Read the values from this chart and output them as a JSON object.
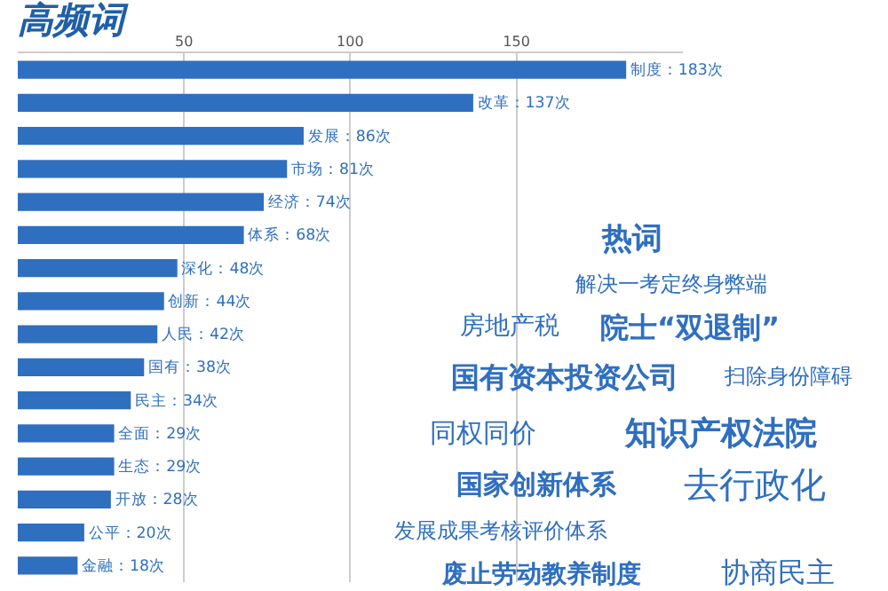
{
  "chart_data": {
    "type": "bar",
    "orientation": "horizontal",
    "title": "高频词",
    "categories": [
      null,
      null,
      null,
      null,
      null,
      null,
      null,
      null,
      null,
      null,
      null,
      null,
      null,
      null,
      null,
      null
    ],
    "values": [
      183,
      137,
      86,
      81,
      74,
      68,
      48,
      44,
      42,
      38,
      34,
      29,
      29,
      28,
      20,
      18
    ],
    "value_labels": [
      "制度：183次",
      "改革：137次",
      "发展：86次",
      "市场：81次",
      "经济：74次",
      "体系：68次",
      "深化：48次",
      "创新：44次",
      "人民：42次",
      "国有：38次",
      "民主：34次",
      "全面：29次",
      "生态：29次",
      "开放：28次",
      "公平：20次",
      "金融：18次"
    ],
    "color": "#2f6fc0",
    "xlim": [
      0,
      200
    ],
    "xticks": [
      50,
      100,
      150
    ],
    "grid": "x",
    "tick_labels": "x",
    "annotations": [
      "热词",
      "解决一考定终身弊端",
      "房地产税",
      "院士“双退制”",
      "国有资本投资公司",
      "扫除身份障碍",
      "同权同价",
      "知识产权法院",
      "国家创新体系",
      "去行政化",
      "发展成果考核评价体系",
      "废止劳动教养制度",
      "协商民主"
    ]
  }
}
